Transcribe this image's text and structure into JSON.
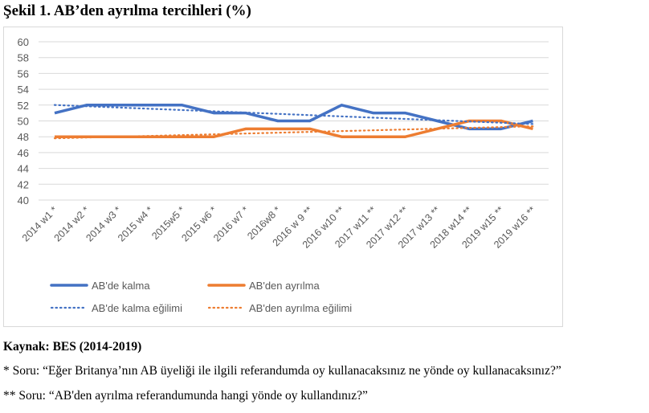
{
  "title": "Şekil 1. AB’den ayrılma tercihleri (%)",
  "chart_data": {
    "type": "line",
    "title": "Şekil 1. AB’den ayrılma tercihleri (%)",
    "xlabel": "",
    "ylabel": "",
    "ylim": [
      40,
      60
    ],
    "yticks": [
      "40",
      "42",
      "44",
      "46",
      "48",
      "50",
      "52",
      "54",
      "56",
      "58",
      "60"
    ],
    "categories": [
      "2014 w1 *",
      "2014  w2 *",
      "2014 w3 *",
      "2015 w4 *",
      "2015w5 *",
      "2015 w6 *",
      "2016 w7 *",
      "2016w8 *",
      "2016 w 9 **",
      "2016 w10 **",
      "2017 w11 **",
      "2017 w12 **",
      "2017 w13 **",
      "2018 w14 **",
      "2019 w15 **",
      "2019 w16 **"
    ],
    "series": [
      {
        "name": "AB'de kalma",
        "color": "#4472c4",
        "style": "solid",
        "values": [
          51,
          52,
          52,
          52,
          52,
          51,
          51,
          50,
          50,
          52,
          51,
          51,
          50,
          49,
          49,
          50
        ]
      },
      {
        "name": "AB'den ayrılma",
        "color": "#ed7d31",
        "style": "solid",
        "values": [
          48,
          48,
          48,
          48,
          48,
          48,
          49,
          49,
          49,
          48,
          48,
          48,
          49,
          50,
          50,
          49
        ]
      },
      {
        "name": "AB'de kalma eğilimi",
        "color": "#4472c4",
        "style": "dotted",
        "trend_of": 0
      },
      {
        "name": "AB'den ayrılma eğilimi",
        "color": "#ed7d31",
        "style": "dotted",
        "trend_of": 1
      }
    ],
    "grid": true,
    "legend": "bottom"
  },
  "notes": {
    "source": "Kaynak: BES (2014-2019)",
    "q1": "* Soru: “Eğer Britanya’nın AB üyeliği ile ilgili referandumda oy kullanacaksınız ne yönde oy kullanacaksınız?”",
    "q2": "** Soru: “AB'den ayrılma referandumunda hangi yönde oy kullandınız?”"
  }
}
